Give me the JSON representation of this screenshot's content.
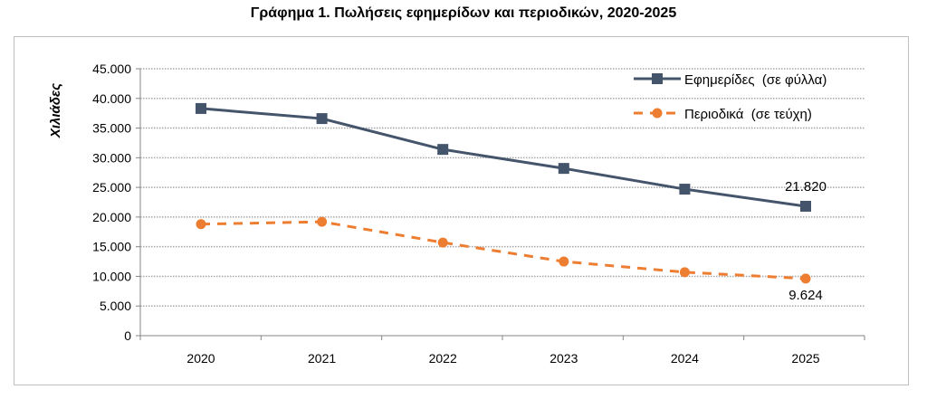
{
  "chart_data": {
    "type": "line",
    "title": "Γράφημα 1. Πωλήσεις εφημερίδων και περιοδικών, 2020-2025",
    "xlabel": "",
    "ylabel": "Χιλιάδες",
    "categories": [
      "2020",
      "2021",
      "2022",
      "2023",
      "2024",
      "2025"
    ],
    "ylim": [
      0,
      45000
    ],
    "yticks": [
      0,
      5000,
      10000,
      15000,
      20000,
      25000,
      30000,
      35000,
      40000,
      45000
    ],
    "ytick_labels": [
      "0",
      "5.000",
      "10.000",
      "15.000",
      "20.000",
      "25.000",
      "30.000",
      "35.000",
      "40.000",
      "45.000"
    ],
    "grid": "horizontal dotted",
    "legend_position": "top-right",
    "series": [
      {
        "name": "Εφημερίδες  (σε φύλλα)",
        "values": [
          38300,
          36600,
          31400,
          28200,
          24700,
          21820
        ],
        "color": "#44546a",
        "style": "solid",
        "marker": "square",
        "end_label": "21.820"
      },
      {
        "name": "Περιοδικά  (σε τεύχη)",
        "values": [
          18800,
          19200,
          15700,
          12500,
          10700,
          9624
        ],
        "color": "#ed7d31",
        "style": "dashed",
        "marker": "circle",
        "end_label": "9.624"
      }
    ]
  }
}
